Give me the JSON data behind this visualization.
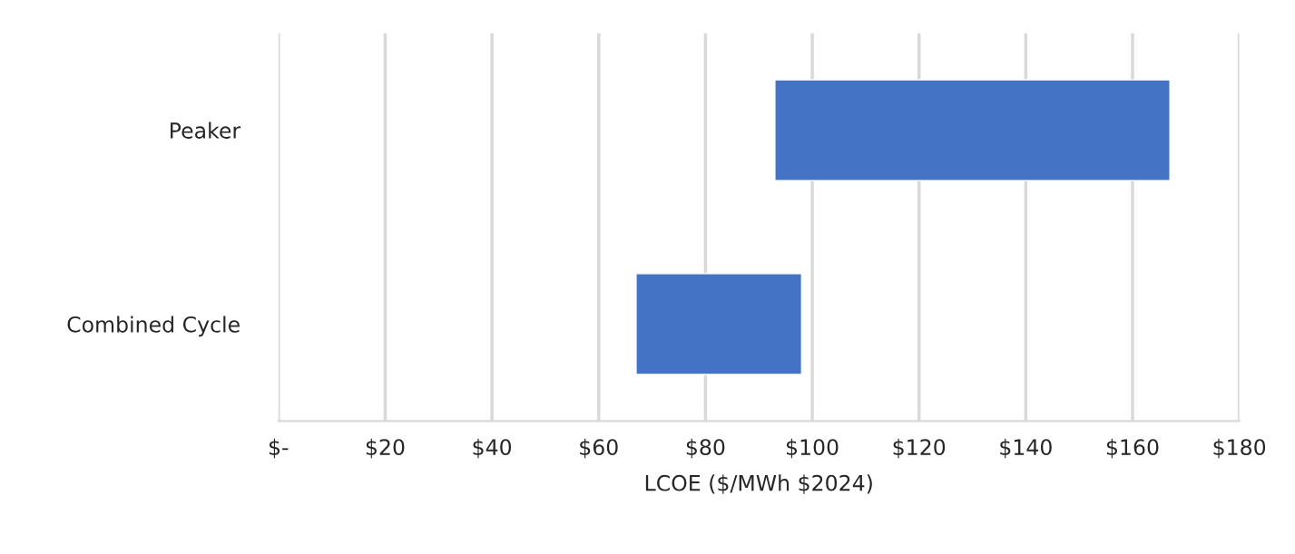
{
  "chart_data": {
    "type": "bar",
    "orientation": "horizontal",
    "xlabel": "LCOE ($/MWh $2024)",
    "categories": [
      "Peaker",
      "Combined Cycle"
    ],
    "base": [
      93,
      67
    ],
    "values": [
      74,
      31
    ],
    "color": "#4472c4",
    "xlim": [
      0,
      180
    ],
    "xticks": [
      {
        "value": 0,
        "label": "$-"
      },
      {
        "value": 20,
        "label": "$20"
      },
      {
        "value": 40,
        "label": "$40"
      },
      {
        "value": 60,
        "label": "$60"
      },
      {
        "value": 80,
        "label": "$80"
      },
      {
        "value": 100,
        "label": "$100"
      },
      {
        "value": 120,
        "label": "$120"
      },
      {
        "value": 140,
        "label": "$140"
      },
      {
        "value": 160,
        "label": "$160"
      },
      {
        "value": 180,
        "label": "$180"
      }
    ],
    "grid": "x"
  }
}
